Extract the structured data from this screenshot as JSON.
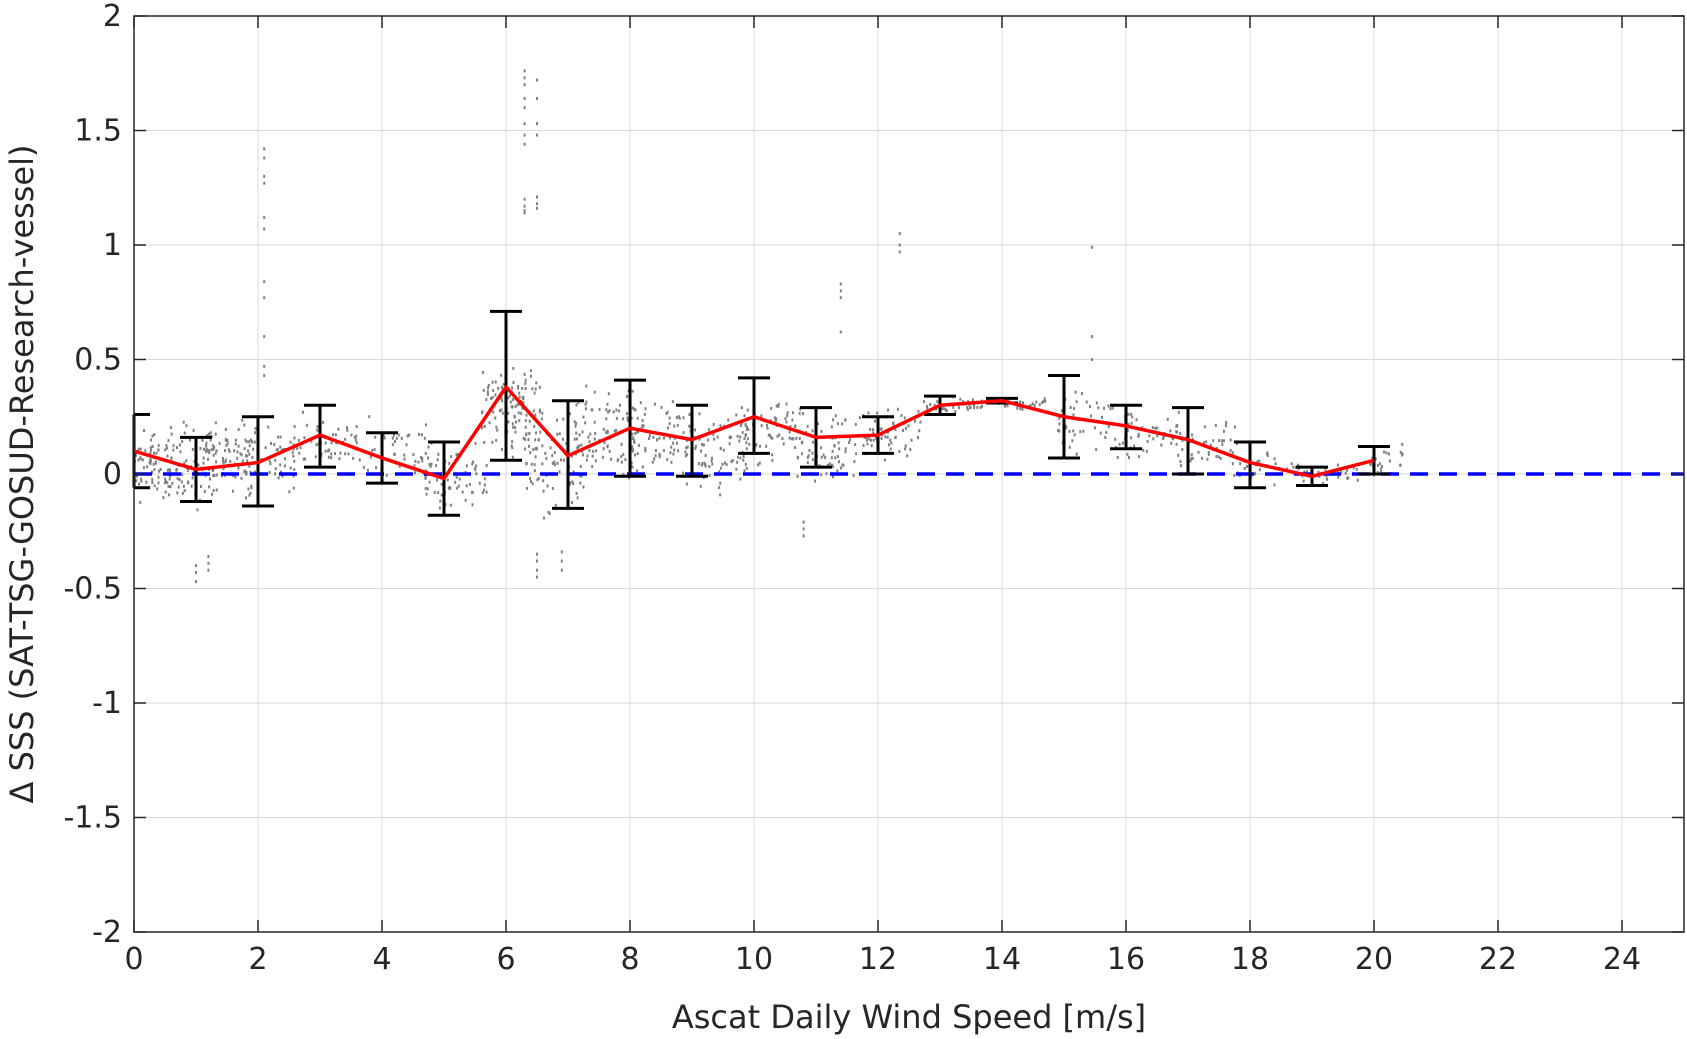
{
  "chart_data": {
    "type": "scatter",
    "xlabel": "Ascat Daily Wind Speed [m/s]",
    "ylabel": "Δ SSS (SAT-TSG-GOSUD-Research-vessel)",
    "xlim": [
      0,
      25
    ],
    "ylim": [
      -2,
      2
    ],
    "xticks": [
      "0",
      "2",
      "4",
      "6",
      "8",
      "10",
      "12",
      "14",
      "16",
      "18",
      "20",
      "22",
      "24"
    ],
    "yticks": [
      "-2",
      "-1.5",
      "-1",
      "-0.5",
      "0",
      "0.5",
      "1",
      "1.5",
      "2"
    ],
    "grid": true,
    "colors": {
      "scatter": "#808080",
      "mean_line": "#ff0000",
      "error_bars": "#000000",
      "reference_line": "#0000ff",
      "grid": "#d9d9d9",
      "axes": "#262626"
    },
    "reference_line": {
      "y": 0,
      "style": "dashed"
    },
    "binned_mean": {
      "x": [
        0,
        1,
        2,
        3,
        4,
        5,
        6,
        7,
        8,
        9,
        10,
        11,
        12,
        13,
        14,
        15,
        16,
        17,
        18,
        19,
        20
      ],
      "y": [
        0.1,
        0.02,
        0.05,
        0.17,
        0.07,
        -0.02,
        0.38,
        0.08,
        0.2,
        0.15,
        0.25,
        0.16,
        0.17,
        0.3,
        0.32,
        0.25,
        0.21,
        0.15,
        0.05,
        -0.01,
        0.06
      ],
      "lower": [
        -0.06,
        -0.12,
        -0.14,
        0.03,
        -0.04,
        -0.18,
        0.06,
        -0.15,
        -0.01,
        -0.01,
        0.09,
        0.03,
        0.09,
        0.26,
        0.31,
        0.07,
        0.11,
        0.0,
        -0.06,
        -0.05,
        0.0
      ],
      "upper": [
        0.26,
        0.16,
        0.25,
        0.3,
        0.18,
        0.14,
        0.71,
        0.32,
        0.41,
        0.3,
        0.42,
        0.29,
        0.25,
        0.34,
        0.33,
        0.43,
        0.3,
        0.29,
        0.14,
        0.03,
        0.12
      ]
    },
    "scatter_clusters": [
      {
        "x": 0.3,
        "spread": 0.3,
        "y_center": 0.05,
        "y_spread": 0.12,
        "n": 60
      },
      {
        "x": 0.9,
        "spread": 0.4,
        "y_center": 0.05,
        "y_spread": 0.15,
        "n": 90
      },
      {
        "x": 1.5,
        "spread": 0.4,
        "y_center": 0.08,
        "y_spread": 0.13,
        "n": 80
      },
      {
        "x": 2.2,
        "spread": 0.4,
        "y_center": 0.08,
        "y_spread": 0.14,
        "n": 60
      },
      {
        "x": 3.1,
        "spread": 0.5,
        "y_center": 0.15,
        "y_spread": 0.1,
        "n": 50
      },
      {
        "x": 4.2,
        "spread": 0.6,
        "y_center": 0.1,
        "y_spread": 0.12,
        "n": 50
      },
      {
        "x": 5.2,
        "spread": 0.5,
        "y_center": 0.0,
        "y_spread": 0.14,
        "n": 70
      },
      {
        "x": 6.1,
        "spread": 0.5,
        "y_center": 0.28,
        "y_spread": 0.18,
        "n": 110
      },
      {
        "x": 6.8,
        "spread": 0.5,
        "y_center": 0.05,
        "y_spread": 0.18,
        "n": 90
      },
      {
        "x": 7.6,
        "spread": 0.5,
        "y_center": 0.18,
        "y_spread": 0.17,
        "n": 90
      },
      {
        "x": 8.5,
        "spread": 0.5,
        "y_center": 0.15,
        "y_spread": 0.15,
        "n": 80
      },
      {
        "x": 9.4,
        "spread": 0.5,
        "y_center": 0.1,
        "y_spread": 0.14,
        "n": 80
      },
      {
        "x": 10.3,
        "spread": 0.5,
        "y_center": 0.2,
        "y_spread": 0.12,
        "n": 70
      },
      {
        "x": 11.2,
        "spread": 0.5,
        "y_center": 0.12,
        "y_spread": 0.14,
        "n": 70
      },
      {
        "x": 12.2,
        "spread": 0.5,
        "y_center": 0.18,
        "y_spread": 0.1,
        "n": 60
      },
      {
        "x": 13.2,
        "spread": 0.5,
        "y_center": 0.3,
        "y_spread": 0.03,
        "n": 40
      },
      {
        "x": 14.2,
        "spread": 0.5,
        "y_center": 0.31,
        "y_spread": 0.02,
        "n": 30
      },
      {
        "x": 15.4,
        "spread": 0.5,
        "y_center": 0.22,
        "y_spread": 0.12,
        "n": 50
      },
      {
        "x": 16.4,
        "spread": 0.5,
        "y_center": 0.18,
        "y_spread": 0.1,
        "n": 50
      },
      {
        "x": 17.3,
        "spread": 0.5,
        "y_center": 0.12,
        "y_spread": 0.11,
        "n": 50
      },
      {
        "x": 18.3,
        "spread": 0.5,
        "y_center": 0.03,
        "y_spread": 0.06,
        "n": 30
      },
      {
        "x": 19.3,
        "spread": 0.5,
        "y_center": 0.0,
        "y_spread": 0.04,
        "n": 25
      },
      {
        "x": 20.2,
        "spread": 0.3,
        "y_center": 0.05,
        "y_spread": 0.06,
        "n": 25
      }
    ],
    "scatter_outliers": [
      {
        "x": 2.1,
        "y": [
          1.42,
          1.38,
          1.3,
          1.27,
          1.12,
          1.07,
          0.84,
          0.77,
          0.6,
          0.47,
          0.43
        ]
      },
      {
        "x": 6.3,
        "y": [
          1.76,
          1.73,
          1.7,
          1.64,
          1.6,
          1.53,
          1.48,
          1.44,
          1.2,
          1.17,
          1.15,
          1.14
        ]
      },
      {
        "x": 6.5,
        "y": [
          1.72,
          1.64,
          1.53,
          1.48,
          1.21,
          1.18,
          1.16
        ]
      },
      {
        "x": 11.4,
        "y": [
          0.83,
          0.8,
          0.77,
          0.62
        ]
      },
      {
        "x": 12.35,
        "y": [
          1.05,
          1.0,
          0.97
        ]
      },
      {
        "x": 15.45,
        "y": [
          0.99,
          0.6,
          0.5
        ]
      },
      {
        "x": 1.0,
        "y": [
          -0.47,
          -0.43,
          -0.4
        ]
      },
      {
        "x": 1.2,
        "y": [
          -0.42,
          -0.39,
          -0.36
        ]
      },
      {
        "x": 6.5,
        "y": [
          -0.45,
          -0.42,
          -0.38,
          -0.35
        ]
      },
      {
        "x": 6.9,
        "y": [
          -0.42,
          -0.38,
          -0.34
        ]
      },
      {
        "x": 10.8,
        "y": [
          -0.27,
          -0.24,
          -0.21
        ]
      }
    ]
  }
}
